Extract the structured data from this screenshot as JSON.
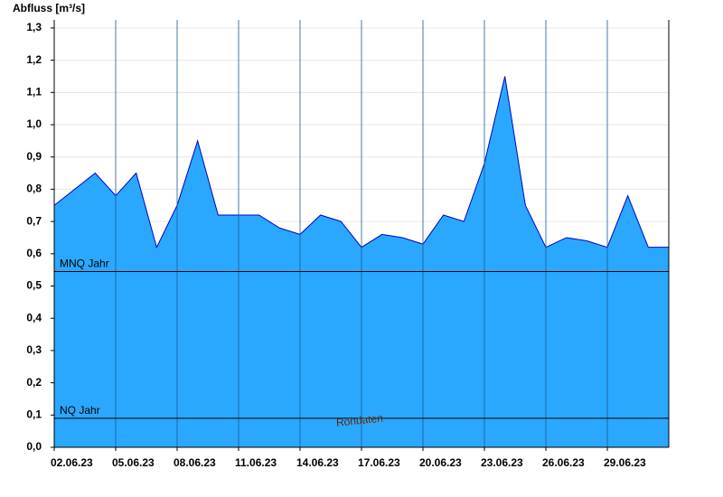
{
  "chart_data": {
    "type": "area",
    "ylabel": "Abfluss [m³/s]",
    "watermark": "Rohdaten",
    "x": [
      "02.06.23",
      "03.06.23",
      "04.06.23",
      "05.06.23",
      "06.06.23",
      "07.06.23",
      "08.06.23",
      "09.06.23",
      "10.06.23",
      "11.06.23",
      "12.06.23",
      "13.06.23",
      "14.06.23",
      "15.06.23",
      "16.06.23",
      "17.06.23",
      "18.06.23",
      "19.06.23",
      "20.06.23",
      "21.06.23",
      "22.06.23",
      "23.06.23",
      "24.06.23",
      "25.06.23",
      "26.06.23",
      "27.06.23",
      "28.06.23",
      "29.06.23",
      "30.06.23",
      "01.07.23",
      "02.07.23"
    ],
    "series": [
      {
        "name": "Abfluss",
        "color": "#2aa8ff",
        "line_color": "#0000cc",
        "values": [
          0.75,
          0.8,
          0.85,
          0.78,
          0.85,
          0.62,
          0.75,
          0.95,
          0.72,
          0.72,
          0.72,
          0.68,
          0.66,
          0.72,
          0.7,
          0.62,
          0.66,
          0.65,
          0.63,
          0.72,
          0.7,
          0.88,
          1.15,
          0.75,
          0.62,
          0.65,
          0.64,
          0.62,
          0.78,
          0.62,
          0.62
        ]
      }
    ],
    "reference_lines": [
      {
        "label": "MNQ Jahr",
        "value": 0.545
      },
      {
        "label": "NQ Jahr",
        "value": 0.09
      }
    ],
    "xlim": [
      "02.06.23",
      "02.07.23"
    ],
    "xticks": [
      "02.06.23",
      "05.06.23",
      "08.06.23",
      "11.06.23",
      "14.06.23",
      "17.06.23",
      "20.06.23",
      "23.06.23",
      "26.06.23",
      "29.06.23"
    ],
    "ylim": [
      0,
      1.325
    ],
    "yticks": [
      {
        "value": 0,
        "label": "0,0"
      },
      {
        "value": 0.1,
        "label": "0,1"
      },
      {
        "value": 0.2,
        "label": "0,2"
      },
      {
        "value": 0.3,
        "label": "0,3"
      },
      {
        "value": 0.4,
        "label": "0,4"
      },
      {
        "value": 0.5,
        "label": "0,5"
      },
      {
        "value": 0.6,
        "label": "0,6"
      },
      {
        "value": 0.7,
        "label": "0,7"
      },
      {
        "value": 0.8,
        "label": "0,8"
      },
      {
        "value": 0.9,
        "label": "0,9"
      },
      {
        "value": 1.0,
        "label": "1,0"
      },
      {
        "value": 1.1,
        "label": "1,1"
      },
      {
        "value": 1.2,
        "label": "1,2"
      },
      {
        "value": 1.3,
        "label": "1,3"
      }
    ],
    "grid": true
  }
}
